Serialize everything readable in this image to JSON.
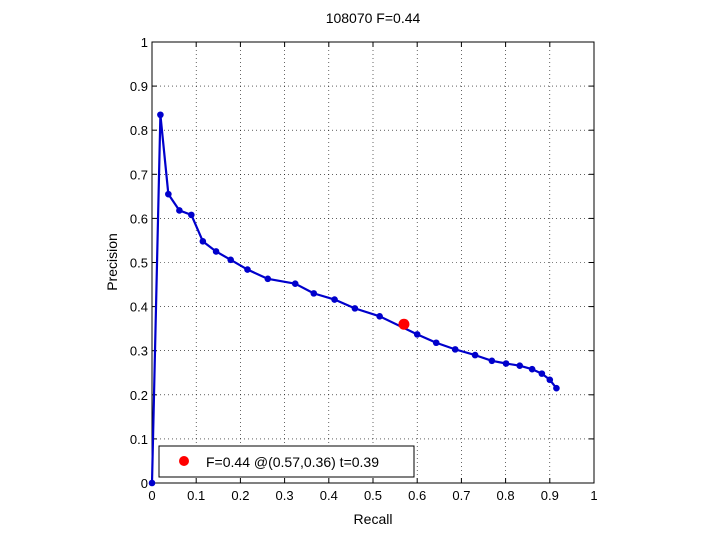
{
  "chart_data": {
    "type": "line",
    "title": "108070 F=0.44",
    "xlabel": "Recall",
    "ylabel": "Precision",
    "xlim": [
      0,
      1
    ],
    "ylim": [
      0,
      1
    ],
    "xticks": [
      0,
      0.1,
      0.2,
      0.3,
      0.4,
      0.5,
      0.6,
      0.7,
      0.8,
      0.9,
      1
    ],
    "yticks": [
      0,
      0.1,
      0.2,
      0.3,
      0.4,
      0.5,
      0.6,
      0.7,
      0.8,
      0.9,
      1
    ],
    "x_tick_labels": [
      "0",
      "0.1",
      "0.2",
      "0.3",
      "0.4",
      "0.5",
      "0.6",
      "0.7",
      "0.8",
      "0.9",
      "1"
    ],
    "y_tick_labels": [
      "0",
      "0.1",
      "0.2",
      "0.3",
      "0.4",
      "0.5",
      "0.6",
      "0.7",
      "0.8",
      "0.9",
      "1"
    ],
    "grid": true,
    "grid_style": "dotted",
    "series": [
      {
        "color": "#0000cc",
        "marker": "circle",
        "x": [
          0.0,
          0.019,
          0.037,
          0.062,
          0.089,
          0.115,
          0.145,
          0.178,
          0.216,
          0.262,
          0.324,
          0.366,
          0.413,
          0.459,
          0.515,
          0.6,
          0.643,
          0.686,
          0.731,
          0.769,
          0.801,
          0.832,
          0.86,
          0.882,
          0.9,
          0.915
        ],
        "y": [
          0.0,
          0.835,
          0.655,
          0.618,
          0.608,
          0.548,
          0.525,
          0.506,
          0.484,
          0.463,
          0.452,
          0.43,
          0.416,
          0.396,
          0.378,
          0.337,
          0.318,
          0.303,
          0.29,
          0.277,
          0.271,
          0.266,
          0.258,
          0.248,
          0.234,
          0.215
        ]
      }
    ],
    "highlight_point": {
      "x": 0.57,
      "y": 0.36,
      "color": "#ff0000"
    },
    "legend": {
      "position": "bottom-left",
      "entries": [
        {
          "label": "F=0.44 @(0.57,0.36) t=0.39",
          "color": "#ff0000",
          "marker": "circle"
        }
      ]
    }
  }
}
